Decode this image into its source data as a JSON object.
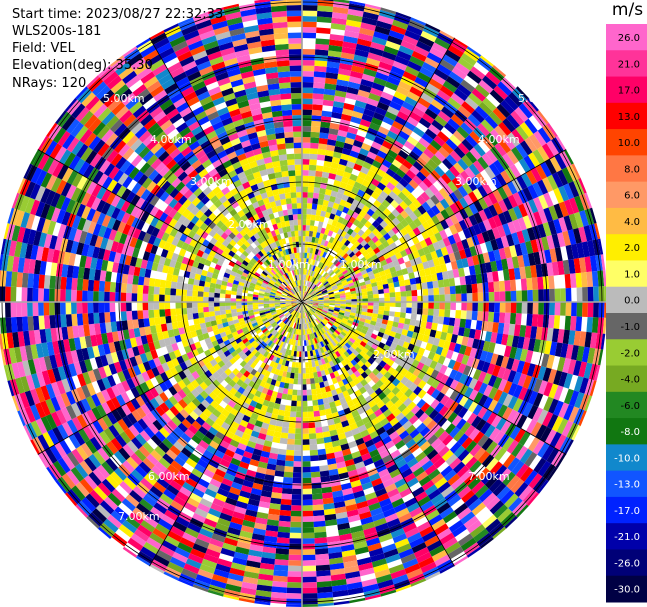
{
  "header": {
    "start_time": "Start time: 2023/08/27 22:32:33",
    "instrument": "WLS200s-181",
    "field": "Field: VEL",
    "elevation": "Elevation(deg): 35.30",
    "nrays": "NRays: 120"
  },
  "colorbar": {
    "unit": "m/s",
    "ticks": [
      "26.0",
      "21.0",
      "17.0",
      "13.0",
      "10.0",
      "8.0",
      "6.0",
      "4.0",
      "2.0",
      "1.0",
      "0.0",
      "-1.0",
      "-2.0",
      "-4.0",
      "-6.0",
      "-8.0",
      "-10.0",
      "-13.0",
      "-17.0",
      "-21.0",
      "-26.0",
      "-30.0"
    ],
    "colors": [
      "#ff66cc",
      "#ff3399",
      "#ff0066",
      "#ff0000",
      "#ff4400",
      "#ff7744",
      "#ff9966",
      "#ffbb44",
      "#ffee00",
      "#ffff66",
      "#bbbbbb",
      "#666666",
      "#99cc33",
      "#77aa22",
      "#228822",
      "#117711",
      "#1188cc",
      "#1155ff",
      "#0022ff",
      "#0000aa",
      "#000077",
      "#000044"
    ]
  },
  "chart_data": {
    "type": "heatmap",
    "subtype": "polar-ppi",
    "field": "VEL",
    "units": "m/s",
    "nrays": 120,
    "elevation_deg": 35.3,
    "range_rings_labels": [
      "1.00km",
      "1.00km",
      "2.00km",
      "2.00km",
      "3.00km",
      "3.00km",
      "4.00km",
      "4.00km",
      "5.00km",
      "5.00km",
      "6.00km",
      "7.00km",
      "7.00km"
    ],
    "vmin": -30.0,
    "vmax": 26.0,
    "description_values": "near-range gates mostly 0 to 2 m/s (yellow/grey/green); far-range gates noisy spanning full -30 to 26 m/s"
  }
}
